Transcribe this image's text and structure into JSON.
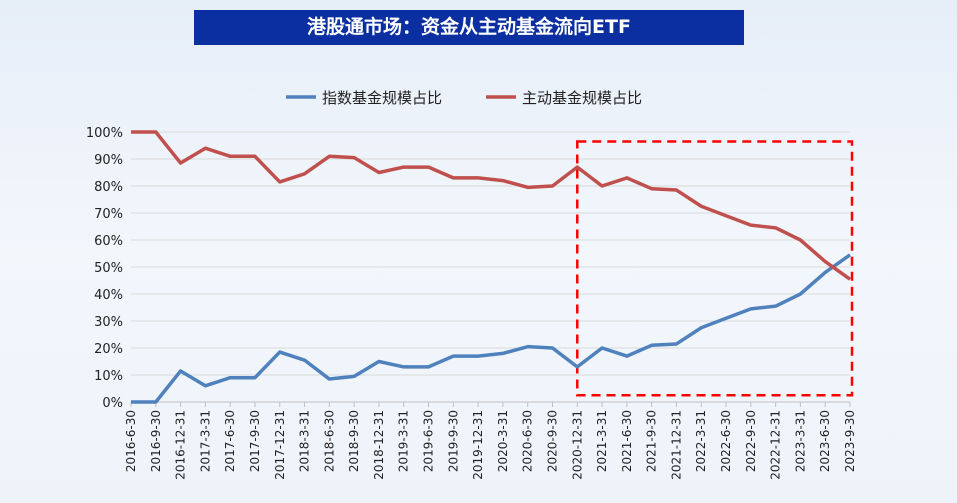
{
  "title": "港股通市场：资金从主动基金流向ETF",
  "chart_data": {
    "type": "line",
    "title": "港股通市场：资金从主动基金流向ETF",
    "xlabel": "",
    "ylabel": "",
    "ylim": [
      0,
      100
    ],
    "yticks": [
      "0%",
      "10%",
      "20%",
      "30%",
      "40%",
      "50%",
      "60%",
      "70%",
      "80%",
      "90%",
      "100%"
    ],
    "grid": true,
    "legend_position": "top",
    "categories": [
      "2016-6-30",
      "2016-9-30",
      "2016-12-31",
      "2017-3-31",
      "2017-6-30",
      "2017-9-30",
      "2017-12-31",
      "2018-3-31",
      "2018-6-30",
      "2018-9-30",
      "2018-12-31",
      "2019-3-31",
      "2019-6-30",
      "2019-9-30",
      "2019-12-31",
      "2020-3-31",
      "2020-6-30",
      "2020-9-30",
      "2020-12-31",
      "2021-3-31",
      "2021-6-30",
      "2021-9-30",
      "2021-12-31",
      "2022-3-31",
      "2022-6-30",
      "2022-9-30",
      "2022-12-31",
      "2023-3-31",
      "2023-6-30",
      "2023-9-30"
    ],
    "series": [
      {
        "name": "指数基金规模占比",
        "color": "#4f81bd",
        "values": [
          0,
          0,
          11.5,
          6,
          9,
          9,
          18.5,
          15.5,
          8.5,
          9.5,
          15,
          13,
          13,
          17,
          17,
          18,
          20.5,
          20,
          13,
          20,
          17,
          21,
          21.5,
          27.5,
          31,
          34.5,
          35.5,
          40,
          48,
          54.5
        ]
      },
      {
        "name": "主动基金规模占比",
        "color": "#c0504d",
        "values": [
          100,
          100,
          88.5,
          94,
          91,
          91,
          81.5,
          84.5,
          91,
          90.5,
          85,
          87,
          87,
          83,
          83,
          82,
          79.5,
          80,
          87,
          80,
          83,
          79,
          78.5,
          72.5,
          69,
          65.5,
          64.5,
          60,
          52,
          45.5
        ]
      }
    ],
    "annotation": {
      "type": "dashed-rectangle",
      "color": "#ff0000",
      "from": "2020-12-31",
      "to": "2023-9-30"
    }
  }
}
